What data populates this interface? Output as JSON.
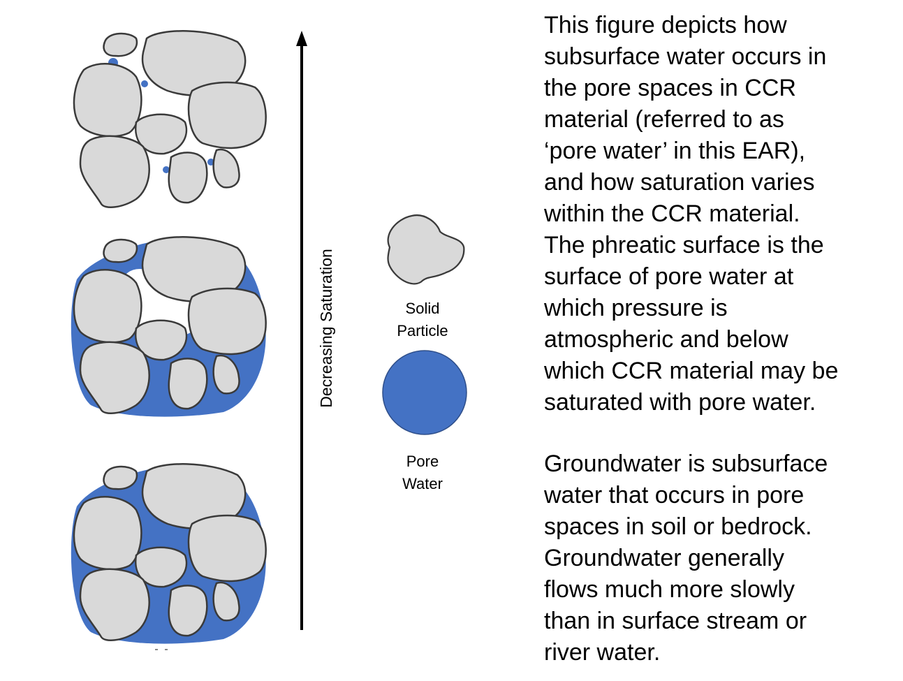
{
  "diagram": {
    "axis_label": "Decreasing Saturation",
    "legend": [
      {
        "label": [
          "Solid",
          "Particle"
        ]
      },
      {
        "label": [
          "Pore",
          "Water"
        ]
      }
    ]
  },
  "text": {
    "paragraphs": [
      [
        "This figure depicts how",
        "subsurface water occurs in",
        "the pore spaces in CCR",
        "material (referred to as",
        "‘pore water’ in this EAR),",
        "and how saturation varies",
        "within the CCR material.",
        "The phreatic surface is the",
        "surface of pore water at",
        "which pressure is",
        "atmospheric and below",
        "which CCR material may be",
        "saturated with pore water."
      ],
      [
        "Groundwater is subsurface",
        "water that occurs in pore",
        "spaces in soil or bedrock.",
        "Groundwater generally",
        "flows much more slowly",
        "than in surface stream or",
        "river water."
      ]
    ]
  }
}
